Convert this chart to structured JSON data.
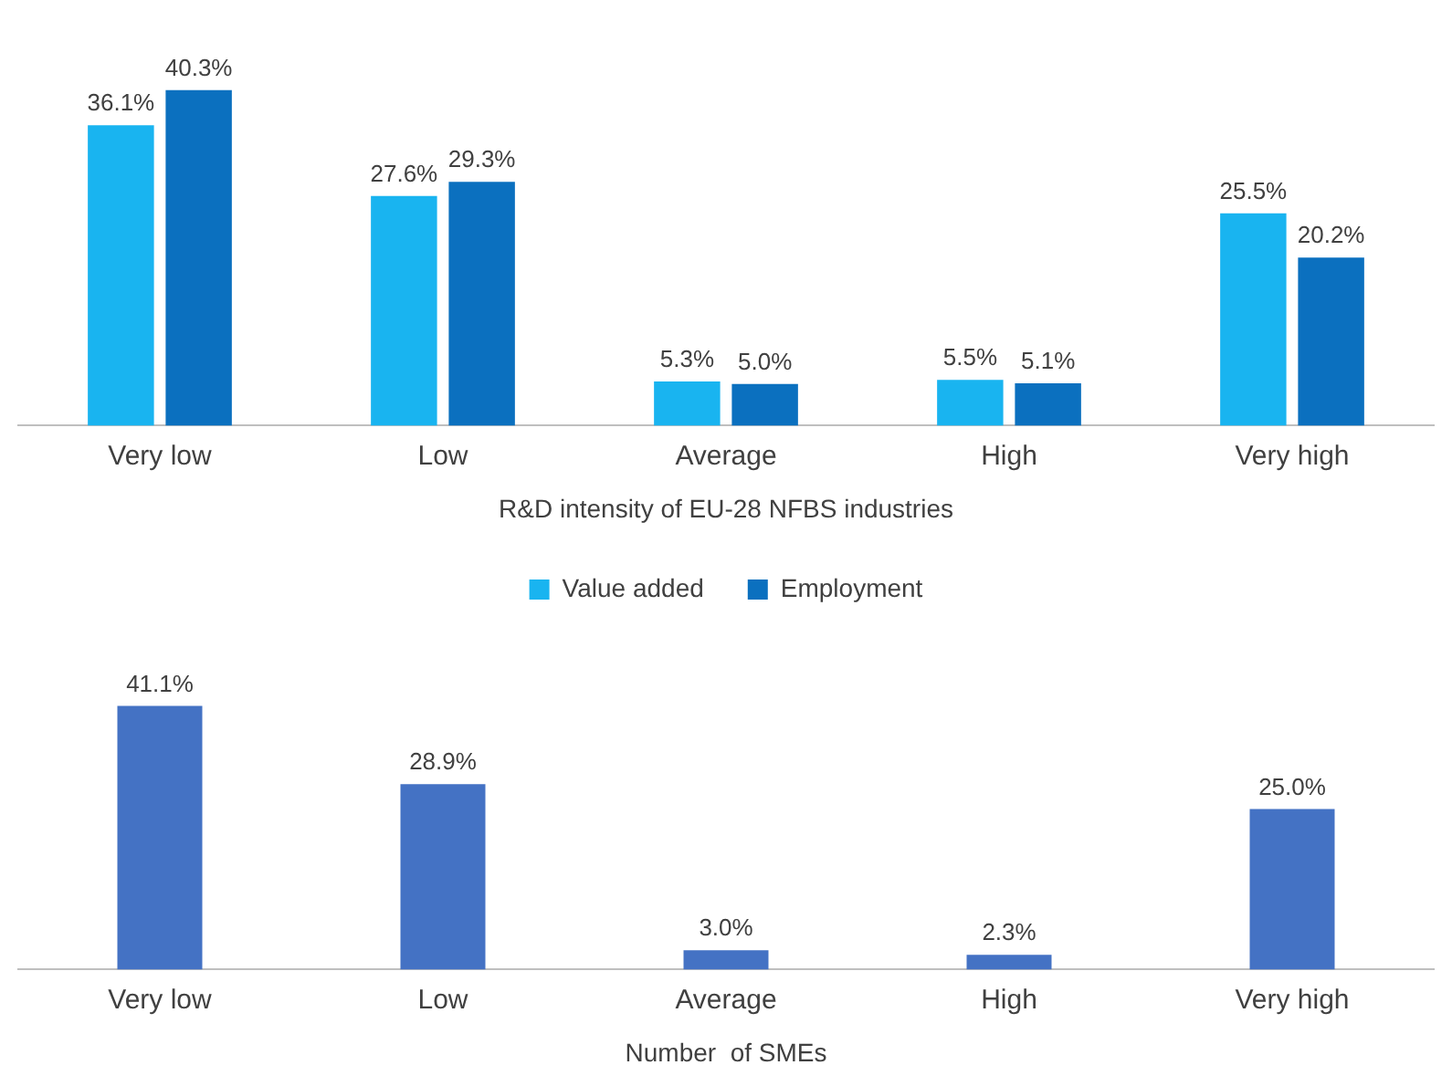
{
  "chart_data": [
    {
      "type": "bar",
      "xlabel": "R&D intensity of EU-28 NFBS industries",
      "categories": [
        "Very low",
        "Low",
        "Average",
        "High",
        "Very high"
      ],
      "series": [
        {
          "name": "Value added",
          "color": "#19b4f0",
          "values": [
            36.1,
            27.6,
            5.3,
            5.5,
            25.5
          ],
          "value_labels": [
            "36.1%",
            "27.6%",
            "5.3%",
            "5.5%",
            "25.5%"
          ]
        },
        {
          "name": "Employment",
          "color": "#0b70bf",
          "values": [
            40.3,
            29.3,
            5.0,
            5.1,
            20.2
          ],
          "value_labels": [
            "40.3%",
            "29.3%",
            "5.0%",
            "5.1%",
            "20.2%"
          ]
        }
      ],
      "legend": "bottom",
      "grid": false
    },
    {
      "type": "bar",
      "xlabel": "Number  of SMEs",
      "categories": [
        "Very low",
        "Low",
        "Average",
        "High",
        "Very high"
      ],
      "series": [
        {
          "color": "#4472c4",
          "values": [
            41.1,
            28.9,
            3.0,
            2.3,
            25.0
          ],
          "value_labels": [
            "41.1%",
            "28.9%",
            "3.0%",
            "2.3%",
            "25.0%"
          ]
        }
      ],
      "legend": false,
      "grid": false
    }
  ]
}
